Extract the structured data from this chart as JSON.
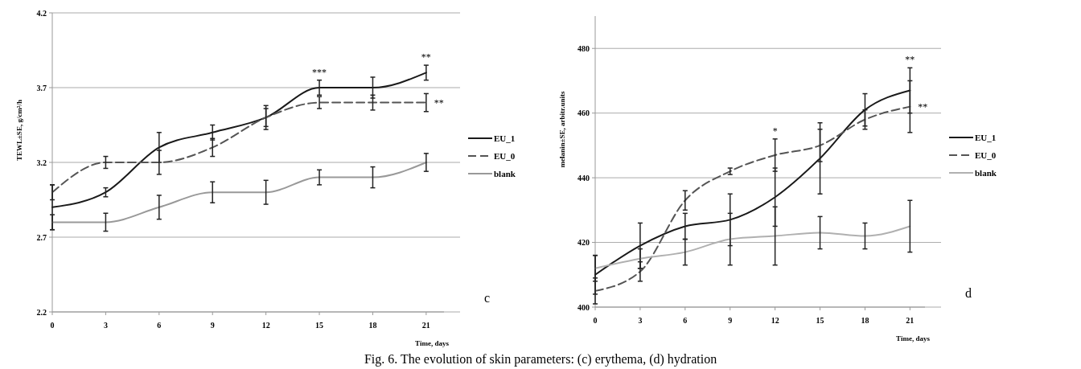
{
  "chart_data": [
    {
      "type": "line",
      "ylabel": "TEWL±SE, g/cm²/h",
      "xlabel": "Time, days",
      "x": [
        0,
        3,
        6,
        9,
        12,
        15,
        18,
        21
      ],
      "xlim": [
        0,
        22
      ],
      "xticks": [
        0,
        3,
        6,
        9,
        12,
        15,
        18,
        21
      ],
      "ylim": [
        2.2,
        4.2
      ],
      "yticks": [
        2.2,
        2.7,
        3.2,
        3.7,
        4.2
      ],
      "grid": "y",
      "legend": "right",
      "marker": "none",
      "series": [
        {
          "name": "EU_1",
          "color": "#1a1a1a",
          "line_style": "solid",
          "values": [
            2.9,
            3.0,
            3.3,
            3.4,
            3.5,
            3.7,
            3.7,
            3.8
          ],
          "errors": [
            0.15,
            0.03,
            0.1,
            0.05,
            0.08,
            0.05,
            0.07,
            0.05
          ]
        },
        {
          "name": "EU_0",
          "color": "#555555",
          "line_style": "dashed",
          "values": [
            3.0,
            3.2,
            3.2,
            3.3,
            3.5,
            3.6,
            3.6,
            3.6
          ],
          "errors": [
            0.05,
            0.04,
            0.08,
            0.06,
            0.06,
            0.04,
            0.05,
            0.06
          ]
        },
        {
          "name": "blank",
          "color": "#999999",
          "line_style": "solid",
          "values": [
            2.8,
            2.8,
            2.9,
            3.0,
            3.0,
            3.1,
            3.1,
            3.2
          ],
          "errors": [
            0.05,
            0.06,
            0.08,
            0.07,
            0.08,
            0.05,
            0.07,
            0.06
          ]
        }
      ],
      "annotations": [
        {
          "text": "***",
          "x": 15,
          "y": 3.7
        },
        {
          "text": "**",
          "x": 21,
          "y": 3.8
        },
        "**",
        "c",
        "Fig. 6. The evolution of skin parameters:  (c) erythema, (d) hydration"
      ]
    },
    {
      "type": "line",
      "ylabel": "melanin±SE, arbitr.units",
      "xlabel": "Time, days",
      "x": [
        0,
        3,
        6,
        9,
        12,
        15,
        18,
        21
      ],
      "xlim": [
        0,
        22
      ],
      "xticks": [
        0,
        3,
        6,
        9,
        12,
        15,
        18,
        21
      ],
      "ylim": [
        400,
        490
      ],
      "yticks": [
        400,
        420,
        440,
        460,
        480
      ],
      "grid": "y",
      "legend": "right",
      "marker": "none",
      "series": [
        {
          "name": "EU_1",
          "color": "#1a1a1a",
          "line_style": "solid",
          "values": [
            410,
            419,
            425,
            427,
            434,
            446,
            461,
            467
          ],
          "errors": [
            6,
            7,
            4,
            8,
            9,
            11,
            5,
            7
          ]
        },
        {
          "name": "EU_0",
          "color": "#555555",
          "line_style": "dashed",
          "values": [
            405,
            411,
            433,
            442,
            447,
            450,
            458,
            462
          ],
          "errors": [
            4,
            3,
            3,
            1,
            5,
            5,
            3,
            8
          ]
        },
        {
          "name": "blank",
          "color": "#b0b0b0",
          "line_style": "solid",
          "values": [
            412,
            415,
            417,
            421,
            422,
            423,
            422,
            425
          ],
          "errors": [
            4,
            3,
            4,
            8,
            9,
            5,
            4,
            8
          ]
        }
      ],
      "annotations": [
        {
          "text": "*",
          "x": 12,
          "y": 447
        },
        {
          "text": "**",
          "x": 21,
          "y": 467
        },
        "**",
        "d"
      ]
    }
  ]
}
